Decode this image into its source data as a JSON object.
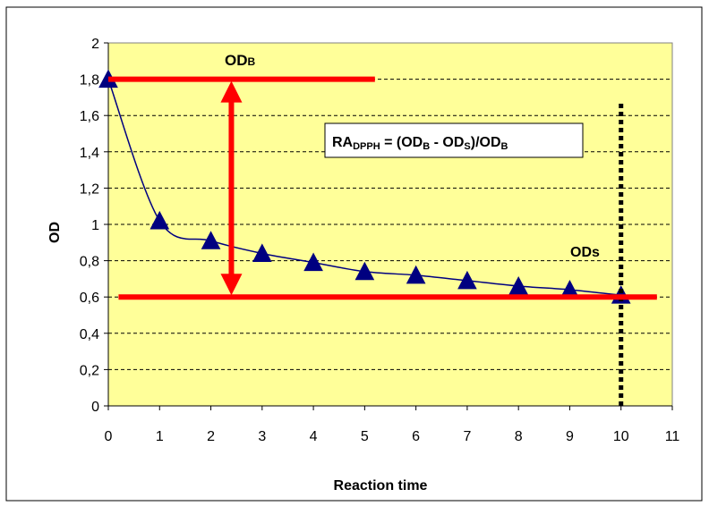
{
  "chart_data": {
    "type": "scatter",
    "title": "",
    "xlabel": "Reaction time",
    "ylabel": "OD",
    "xlim": [
      0,
      11
    ],
    "ylim": [
      0,
      2
    ],
    "x_ticks": [
      "0",
      "1",
      "2",
      "3",
      "4",
      "5",
      "6",
      "7",
      "8",
      "9",
      "10",
      "11"
    ],
    "y_ticks": [
      "0",
      "0,2",
      "0,4",
      "0,6",
      "0,8",
      "1",
      "1,2",
      "1,4",
      "1,6",
      "1,8",
      "2"
    ],
    "grid": "horizontal dashed",
    "plot_background": "#FFFF99",
    "series": [
      {
        "marker": "triangle",
        "marker_color": "#000080",
        "line_color": "#000080",
        "x": [
          0,
          1,
          2,
          3,
          4,
          5,
          6,
          7,
          8,
          9,
          10
        ],
        "y": [
          1.8,
          1.02,
          0.91,
          0.84,
          0.79,
          0.74,
          0.72,
          0.69,
          0.66,
          0.64,
          0.61
        ]
      }
    ],
    "annotations": {
      "odb_label_main": "OD",
      "odb_label_sub": "B",
      "ods_label": "ODs",
      "formula": {
        "part1": "RA",
        "part1_sub": "DPPH",
        "part2": " = (OD",
        "part2_sub": "B",
        "part3": " - OD",
        "part3_sub": "S",
        "part4": ")/OD",
        "part4_sub": "B"
      },
      "odb_line": {
        "x_start": 0,
        "x_end": 5.2,
        "y": 1.8
      },
      "ods_line": {
        "x_start": 0.2,
        "x_end": 10.7,
        "y": 0.6
      },
      "arrow": {
        "x": 2.4,
        "y_from": 1.8,
        "y_to": 0.6
      },
      "dotted_line": {
        "x": 10,
        "y_from": 0,
        "y_to": 1.68
      },
      "accent_color": "#FF0000"
    }
  }
}
